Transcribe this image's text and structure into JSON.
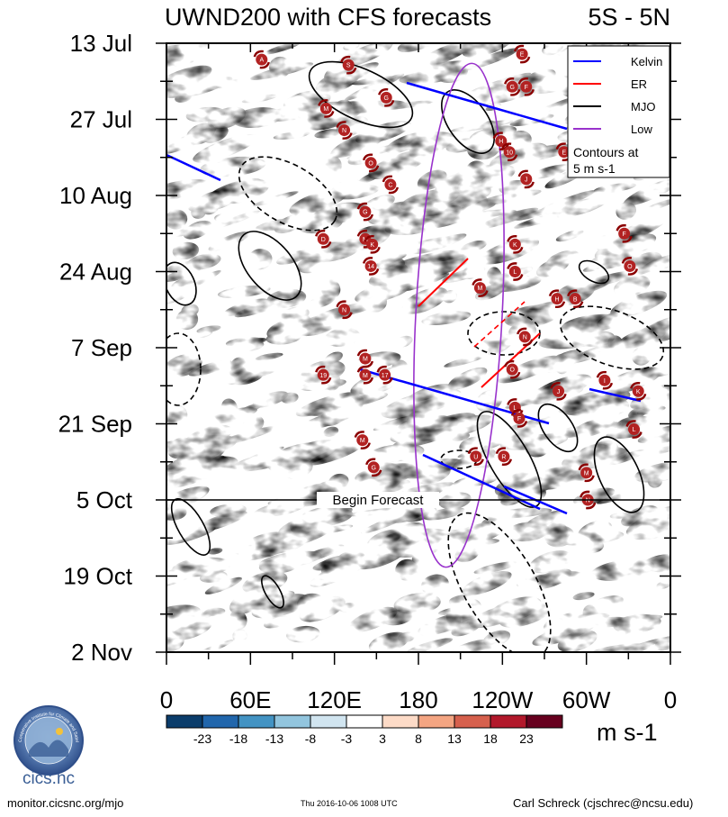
{
  "title_left": "UWND200 with CFS forecasts",
  "title_right": "5S - 5N",
  "footer": {
    "url": "monitor.cicsnc.org/mjo",
    "timestamp": "Thu 2016-10-06 1008 UTC",
    "author": "Carl Schreck (cjschrec@ncsu.edu)"
  },
  "logo": {
    "name": "cics.nc",
    "ring_text": "Cooperative Institute for Climate and Satellites"
  },
  "chart_data": {
    "type": "heatmap",
    "title": "UWND200 with CFS forecasts",
    "region": "5S - 5N",
    "xlabel": "Longitude",
    "ylabel": "Date",
    "x_ticks": [
      {
        "label": "0",
        "lon": 0
      },
      {
        "label": "60E",
        "lon": 60
      },
      {
        "label": "120E",
        "lon": 120
      },
      {
        "label": "180",
        "lon": 180
      },
      {
        "label": "120W",
        "lon": 240
      },
      {
        "label": "60W",
        "lon": 300
      },
      {
        "label": "0",
        "lon": 360
      }
    ],
    "xlim": [
      0,
      360
    ],
    "y_ticks": [
      {
        "label": "13 Jul",
        "day": 0
      },
      {
        "label": "27 Jul",
        "day": 14
      },
      {
        "label": "10 Aug",
        "day": 28
      },
      {
        "label": "24 Aug",
        "day": 42
      },
      {
        "label": "7 Sep",
        "day": 56
      },
      {
        "label": "21 Sep",
        "day": 70
      },
      {
        "label": "5 Oct",
        "day": 84
      },
      {
        "label": "19 Oct",
        "day": 98
      },
      {
        "label": "2 Nov",
        "day": 112
      }
    ],
    "ylim_days": [
      0,
      112
    ],
    "forecast_start": {
      "label": "Begin Forecast",
      "day": 84
    },
    "colorbar": {
      "units": "m s-1",
      "labels": [
        "-23",
        "-18",
        "-13",
        "-8",
        "-3",
        "3",
        "8",
        "13",
        "18",
        "23"
      ],
      "colors": [
        "#0b3d6b",
        "#2166ac",
        "#4393c3",
        "#92c5de",
        "#d1e5f0",
        "#ffffff",
        "#fddbc7",
        "#f4a582",
        "#d6604d",
        "#b2182b",
        "#67001f"
      ]
    },
    "legend": {
      "position": "top-right",
      "entries": [
        {
          "label": "Kelvin",
          "color": "#0000ff"
        },
        {
          "label": "ER",
          "color": "#ff0000"
        },
        {
          "label": "MJO",
          "color": "#000000"
        },
        {
          "label": "Low",
          "color": "#9932cc"
        }
      ],
      "note_line1": "Contours at",
      "note_line2": "5 m s-1"
    },
    "storms": [
      {
        "letter": "A",
        "lon": 68,
        "day": 3
      },
      {
        "letter": "S",
        "lon": 130,
        "day": 4
      },
      {
        "letter": "E",
        "lon": 254,
        "day": 2
      },
      {
        "letter": "G",
        "lon": 247,
        "day": 8
      },
      {
        "letter": "F",
        "lon": 257,
        "day": 8
      },
      {
        "letter": "G",
        "lon": 157,
        "day": 10
      },
      {
        "letter": "M",
        "lon": 114,
        "day": 12
      },
      {
        "letter": "N",
        "lon": 127,
        "day": 16
      },
      {
        "letter": "H",
        "lon": 239,
        "day": 18
      },
      {
        "letter": "10",
        "lon": 245,
        "day": 20
      },
      {
        "letter": "E",
        "lon": 284,
        "day": 20
      },
      {
        "letter": "O",
        "lon": 146,
        "day": 22
      },
      {
        "letter": "C",
        "lon": 160,
        "day": 26
      },
      {
        "letter": "J",
        "lon": 257,
        "day": 25
      },
      {
        "letter": "G",
        "lon": 142,
        "day": 31
      },
      {
        "letter": "D",
        "lon": 112,
        "day": 36
      },
      {
        "letter": "M",
        "lon": 142,
        "day": 36
      },
      {
        "letter": "K",
        "lon": 147,
        "day": 37
      },
      {
        "letter": "K",
        "lon": 249,
        "day": 37
      },
      {
        "letter": "F",
        "lon": 327,
        "day": 35
      },
      {
        "letter": "O",
        "lon": 331,
        "day": 41
      },
      {
        "letter": "14",
        "lon": 146,
        "day": 41
      },
      {
        "letter": "L",
        "lon": 249,
        "day": 42
      },
      {
        "letter": "M",
        "lon": 224,
        "day": 45
      },
      {
        "letter": "H",
        "lon": 279,
        "day": 47
      },
      {
        "letter": "B",
        "lon": 292,
        "day": 47
      },
      {
        "letter": "N",
        "lon": 127,
        "day": 49
      },
      {
        "letter": "N",
        "lon": 256,
        "day": 54
      },
      {
        "letter": "M",
        "lon": 142,
        "day": 58
      },
      {
        "letter": "O",
        "lon": 247,
        "day": 60
      },
      {
        "letter": "19",
        "lon": 112,
        "day": 61
      },
      {
        "letter": "M",
        "lon": 142,
        "day": 61
      },
      {
        "letter": "17",
        "lon": 156,
        "day": 61
      },
      {
        "letter": "I",
        "lon": 313,
        "day": 62
      },
      {
        "letter": "J",
        "lon": 280,
        "day": 64
      },
      {
        "letter": "K",
        "lon": 337,
        "day": 64
      },
      {
        "letter": "L",
        "lon": 249,
        "day": 67
      },
      {
        "letter": "F",
        "lon": 252,
        "day": 69
      },
      {
        "letter": "L",
        "lon": 334,
        "day": 71
      },
      {
        "letter": "M",
        "lon": 140,
        "day": 73
      },
      {
        "letter": "U",
        "lon": 221,
        "day": 76
      },
      {
        "letter": "R",
        "lon": 241,
        "day": 76
      },
      {
        "letter": "G",
        "lon": 148,
        "day": 78
      },
      {
        "letter": "M",
        "lon": 300,
        "day": 79
      },
      {
        "letter": "N",
        "lon": 301,
        "day": 84
      }
    ]
  }
}
